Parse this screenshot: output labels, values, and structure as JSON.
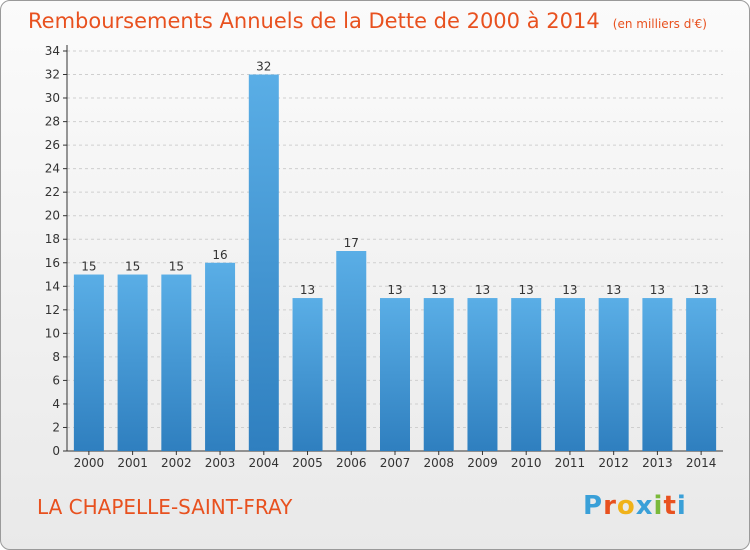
{
  "header": {
    "title": "Remboursements Annuels de la Dette de 2000 à 2014",
    "unit": "(en milliers d'€)"
  },
  "footer": {
    "commune": "LA CHAPELLE-SAINT-FRAY",
    "logo_text": "Proxiti",
    "logo_colors": [
      "#3aa0d8",
      "#e8511f",
      "#f0b21a",
      "#3aa0d8",
      "#7ab93a",
      "#e8511f",
      "#3aa0d8"
    ]
  },
  "colors": {
    "title": "#e8511f",
    "bar_top": "#5aaee6",
    "bar_bottom": "#2f7fbf",
    "axis": "#333333",
    "grid": "#cfcfcf"
  },
  "chart_data": {
    "type": "bar",
    "categories": [
      "2000",
      "2001",
      "2002",
      "2003",
      "2004",
      "2005",
      "2006",
      "2007",
      "2008",
      "2009",
      "2010",
      "2011",
      "2012",
      "2013",
      "2014"
    ],
    "values": [
      15,
      15,
      15,
      16,
      32,
      13,
      17,
      13,
      13,
      13,
      13,
      13,
      13,
      13,
      13
    ],
    "title": "Remboursements Annuels de la Dette de 2000 à 2014",
    "xlabel": "",
    "ylabel": "",
    "ylim": [
      0,
      34
    ],
    "yticks": [
      0,
      2,
      4,
      6,
      8,
      10,
      12,
      14,
      16,
      18,
      20,
      22,
      24,
      26,
      28,
      30,
      32,
      34
    ],
    "grid": true
  }
}
